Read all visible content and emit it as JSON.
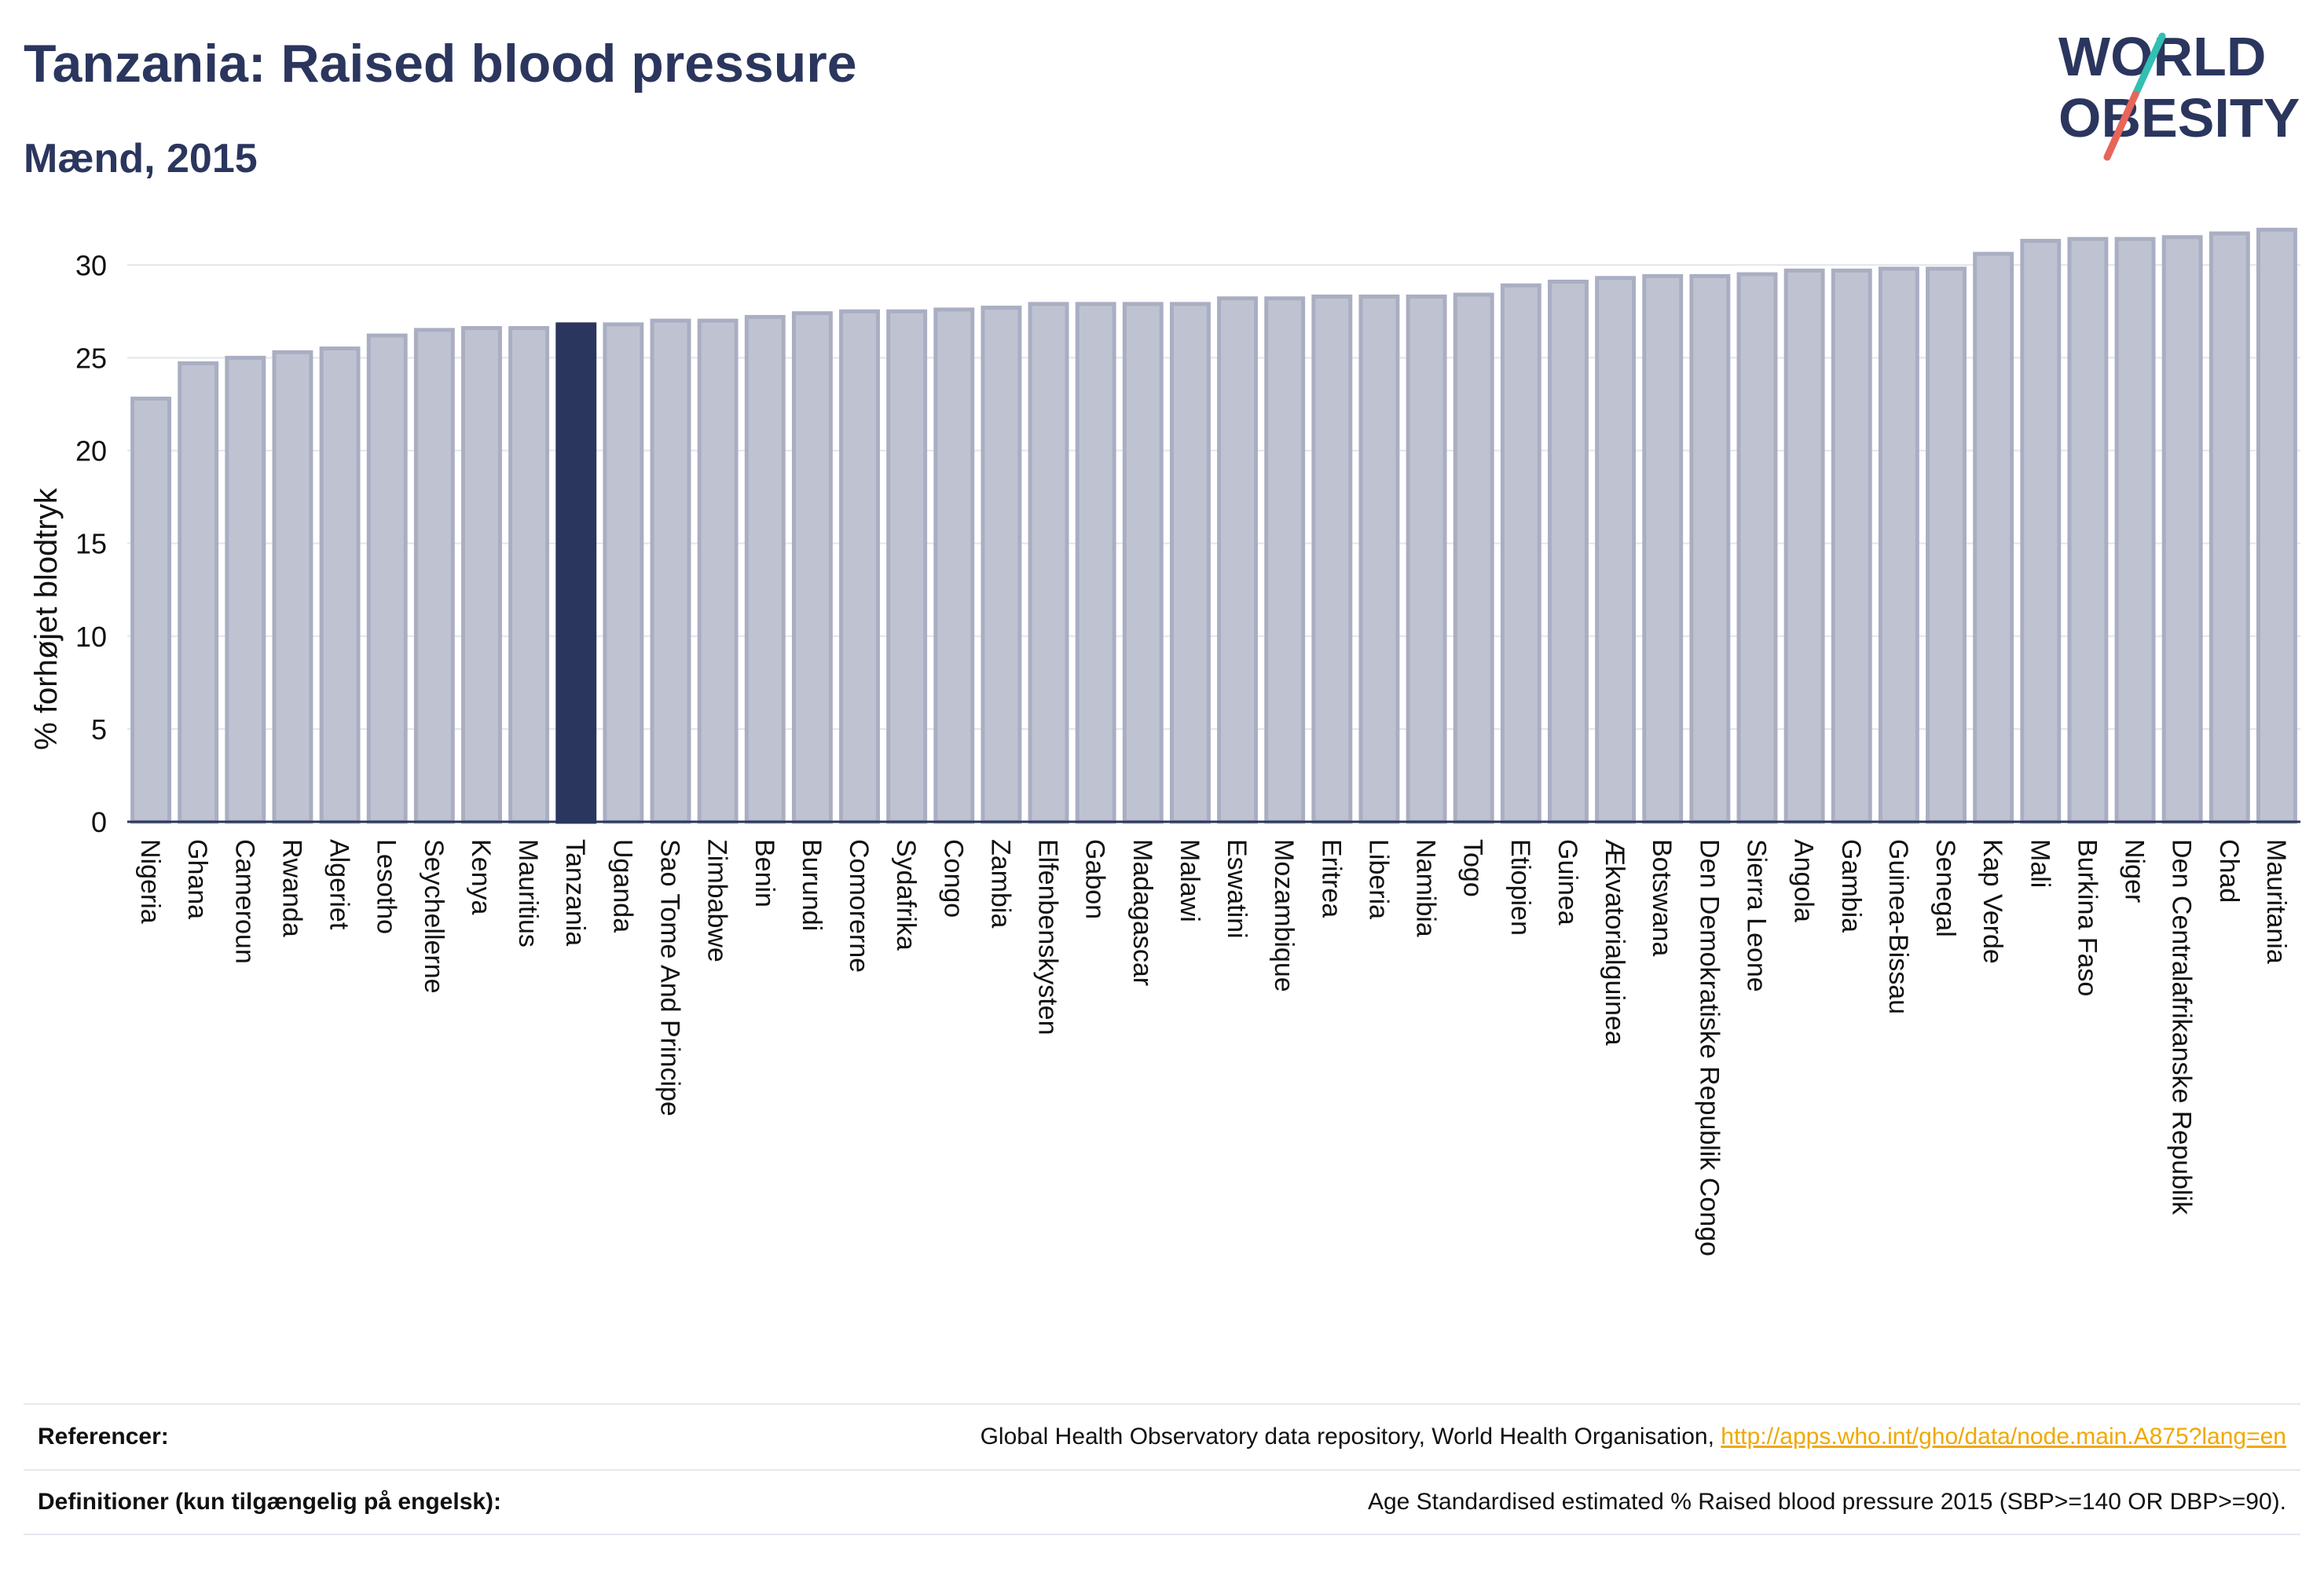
{
  "header": {
    "title": "Tanzania: Raised blood pressure",
    "subtitle": "Mænd, 2015"
  },
  "logo": {
    "line1": "WORLD",
    "line2": "OBESITY",
    "accent_teal": "#33bfb2",
    "accent_red": "#e8655a",
    "text_color": "#2b365e"
  },
  "colors": {
    "bar_default": "#bfc3d1",
    "bar_default_stroke": "#a9aec2",
    "bar_highlight": "#2b365e",
    "axis": "#2b365e",
    "grid": "#e3e5ec"
  },
  "chart_data": {
    "type": "bar",
    "ylabel": "% forhøjet blodtryk",
    "ylim": [
      0,
      32
    ],
    "yticks": [
      0,
      5,
      10,
      15,
      20,
      25,
      30
    ],
    "highlight": "Tanzania",
    "grid": true,
    "categories": [
      "Nigeria",
      "Ghana",
      "Cameroun",
      "Rwanda",
      "Algeriet",
      "Lesotho",
      "Seychellerne",
      "Kenya",
      "Mauritius",
      "Tanzania",
      "Uganda",
      "Sao Tome And Principe",
      "Zimbabwe",
      "Benin",
      "Burundi",
      "Comorerne",
      "Sydafrika",
      "Congo",
      "Zambia",
      "Elfenbenskysten",
      "Gabon",
      "Madagascar",
      "Malawi",
      "Eswatini",
      "Mozambique",
      "Eritrea",
      "Liberia",
      "Namibia",
      "Togo",
      "Etiopien",
      "Guinea",
      "Ækvatorialguinea",
      "Botswana",
      "Den Demokratiske Republik Congo",
      "Sierra Leone",
      "Angola",
      "Gambia",
      "Guinea-Bissau",
      "Senegal",
      "Kap Verde",
      "Mali",
      "Burkina Faso",
      "Niger",
      "Den Centralafrikanske Republik",
      "Chad",
      "Mauritania"
    ],
    "values": [
      22.8,
      24.7,
      25.0,
      25.3,
      25.5,
      26.2,
      26.5,
      26.6,
      26.6,
      26.8,
      26.8,
      27.0,
      27.0,
      27.2,
      27.4,
      27.5,
      27.5,
      27.6,
      27.7,
      27.9,
      27.9,
      27.9,
      27.9,
      28.2,
      28.2,
      28.3,
      28.3,
      28.3,
      28.4,
      28.9,
      29.1,
      29.3,
      29.4,
      29.4,
      29.5,
      29.7,
      29.7,
      29.8,
      29.8,
      30.6,
      31.3,
      31.4,
      31.4,
      31.5,
      31.7,
      31.9
    ]
  },
  "references": {
    "refs_label": "Referencer:",
    "refs_text": "Global Health Observatory data repository, World Health Organisation, ",
    "refs_link": "http://apps.who.int/gho/data/node.main.A875?lang=en",
    "defs_label": "Definitioner (kun tilgængelig på engelsk):",
    "defs_text": "Age Standardised estimated % Raised blood pressure 2015 (SBP>=140 OR DBP>=90)."
  }
}
